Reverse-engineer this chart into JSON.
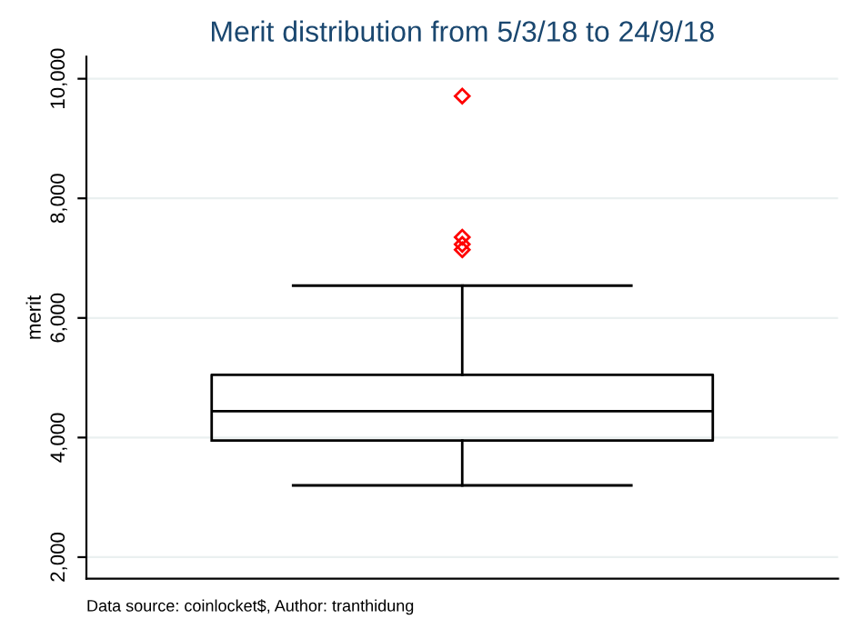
{
  "chart_data": {
    "type": "box",
    "title": "Merit distribution from 5/3/18 to 24/9/18",
    "ylabel": "merit",
    "categories": [
      null
    ],
    "boxes": [
      {
        "low": 3200,
        "q1": 3950,
        "median": 4440,
        "q3": 5050,
        "high": 6540,
        "outliers": [
          9710,
          7350,
          7230,
          7140
        ]
      }
    ],
    "color": "#000000",
    "ylim": [
      1640,
      10370
    ],
    "yticks": [
      {
        "value": 2000,
        "label": "2,000"
      },
      {
        "value": 4000,
        "label": "4,000"
      },
      {
        "value": 6000,
        "label": "6,000"
      },
      {
        "value": 8000,
        "label": "8,000"
      },
      {
        "value": 10000,
        "label": "10,000"
      }
    ],
    "grid": "y",
    "tick_labels": "y",
    "annotations": [
      "Data source: coinlocket$, Author: tranthidung"
    ]
  }
}
